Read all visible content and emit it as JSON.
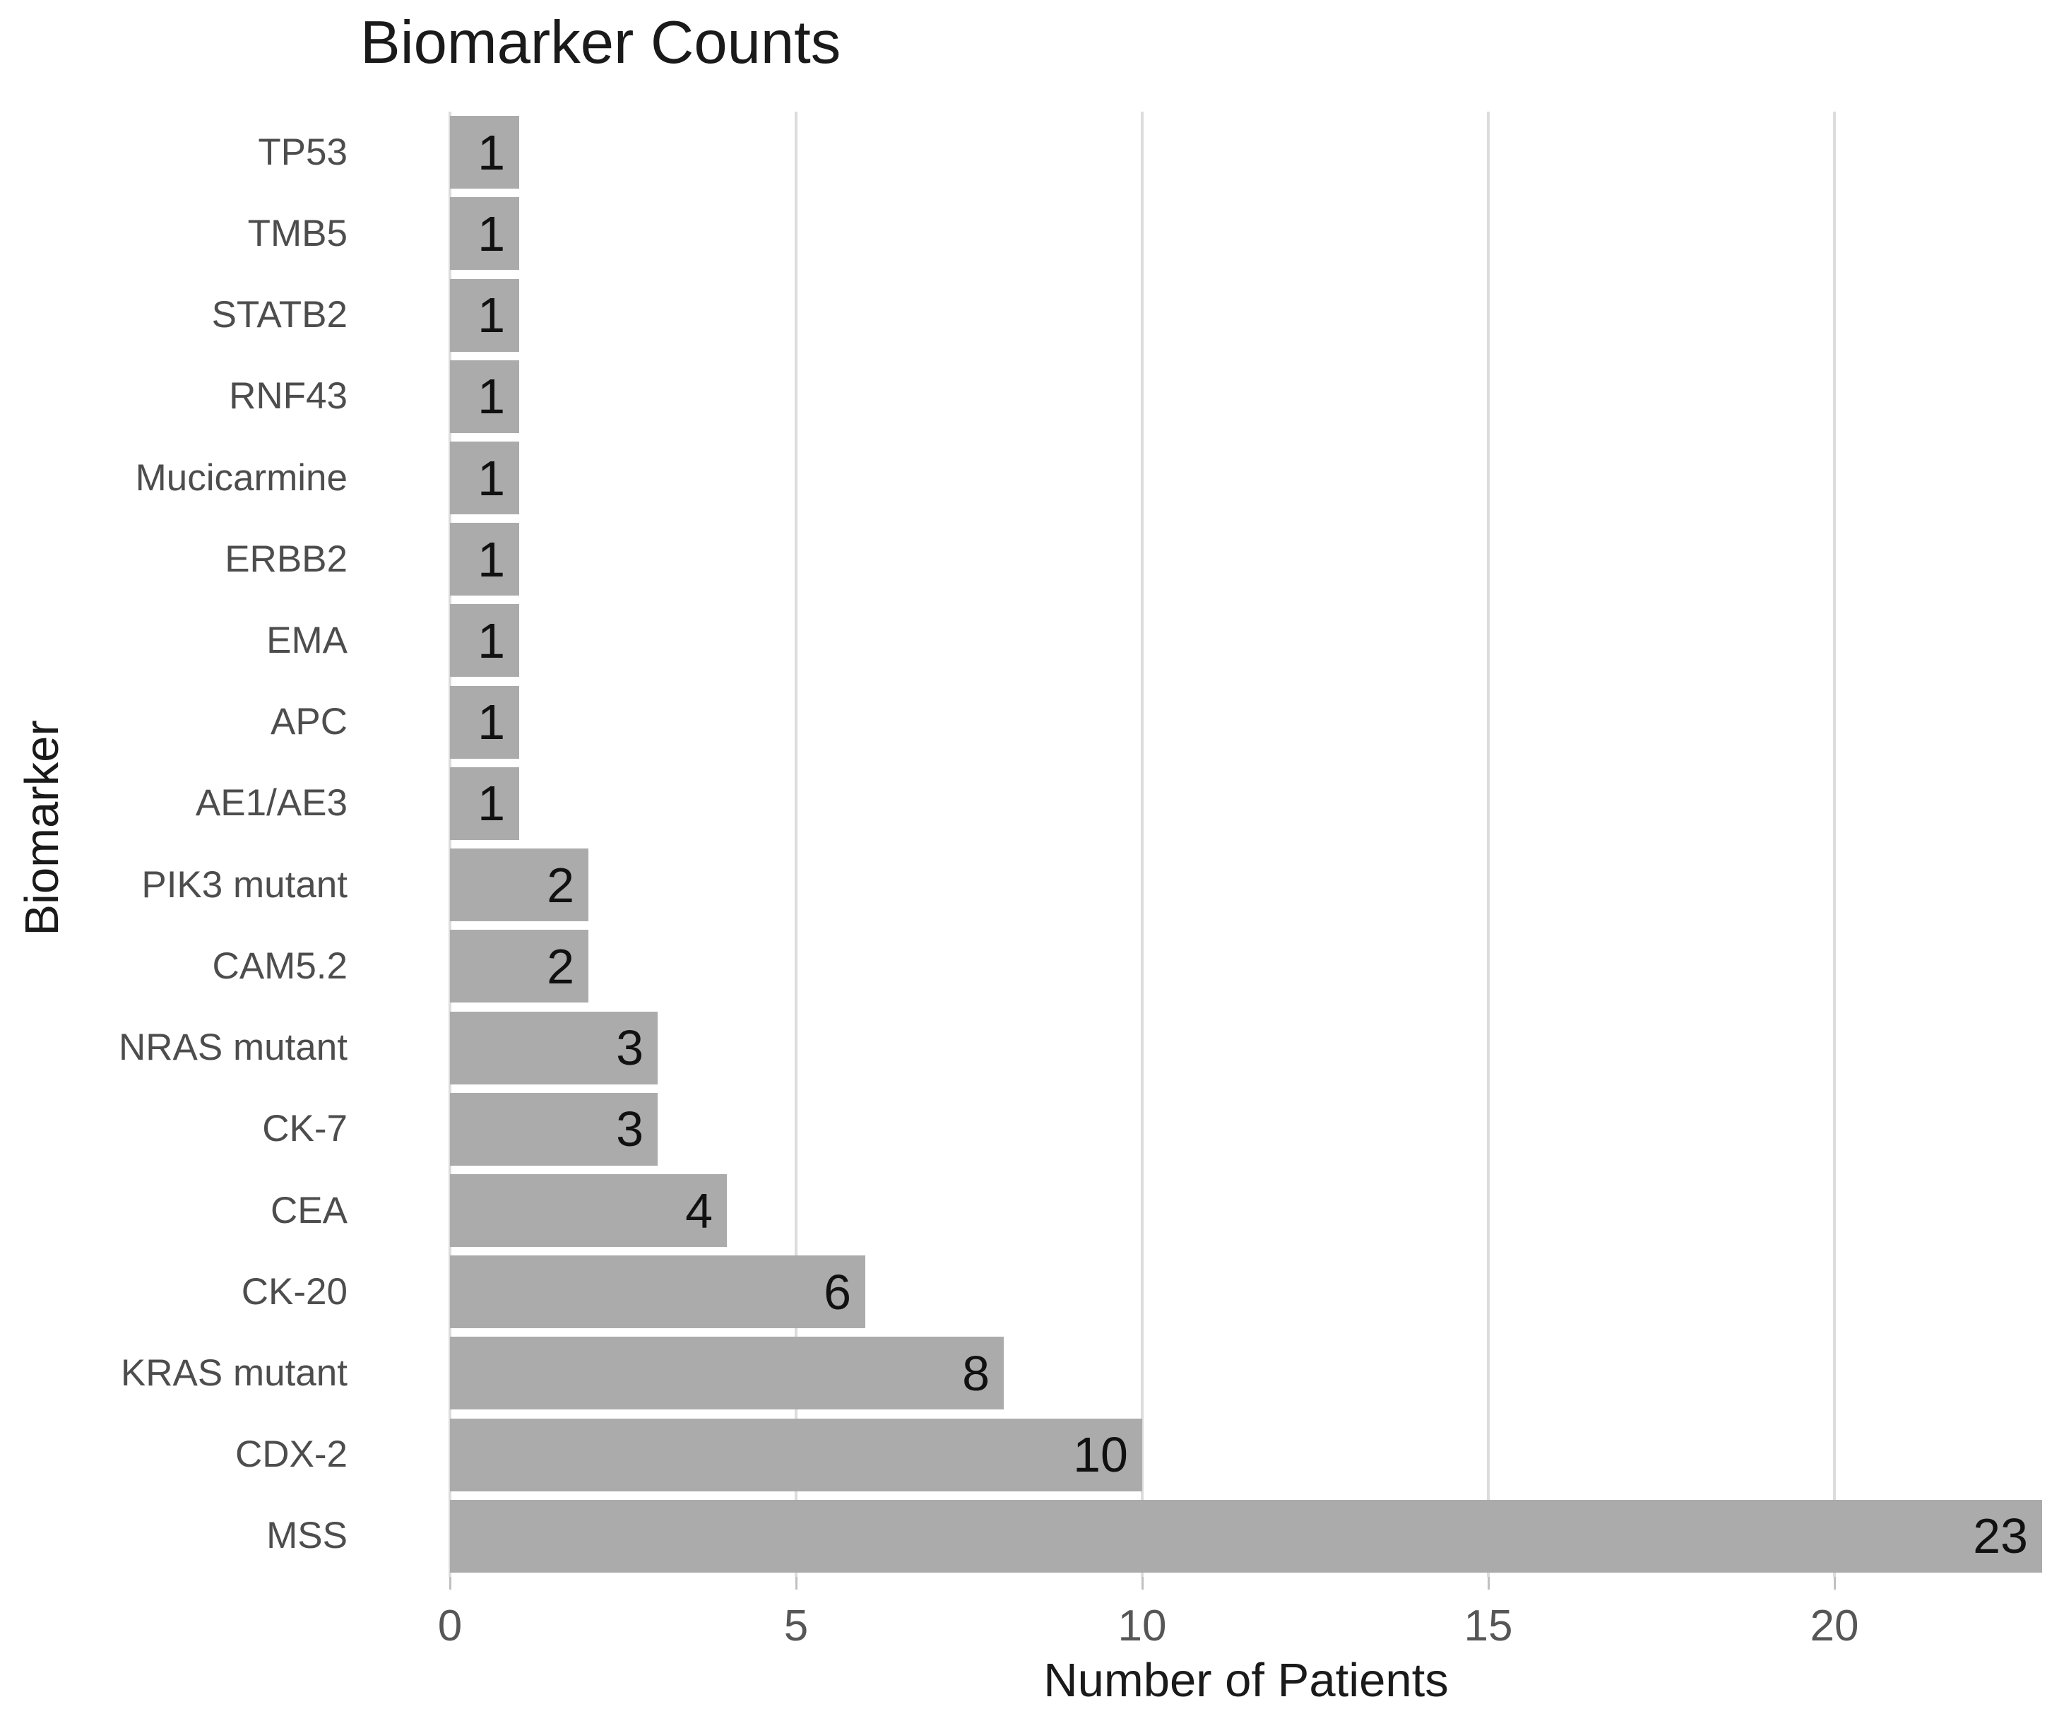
{
  "chart_data": {
    "type": "bar",
    "orientation": "horizontal",
    "title": "Biomarker Counts",
    "xlabel": "Number of Patients",
    "ylabel": "Biomarker",
    "categories": [
      "TP53",
      "TMB5",
      "STATB2",
      "RNF43",
      "Mucicarmine",
      "ERBB2",
      "EMA",
      "APC",
      "AE1/AE3",
      "PIK3 mutant",
      "CAM5.2",
      "NRAS mutant",
      "CK-7",
      "CEA",
      "CK-20",
      "KRAS mutant",
      "CDX-2",
      "MSS"
    ],
    "values": [
      1,
      1,
      1,
      1,
      1,
      1,
      1,
      1,
      1,
      2,
      2,
      3,
      3,
      4,
      6,
      8,
      10,
      23
    ],
    "xticks": [
      0,
      5,
      10,
      15,
      20
    ],
    "xlim": [
      0,
      23.14
    ],
    "grid": true,
    "legend": false,
    "bar_color": "#ababab",
    "gridline_color": "#dcdcdc",
    "background_color": "#ffffff",
    "value_label_color": "#111111",
    "category_label_color": "#4d4d4d",
    "tick_label_color": "#565656"
  }
}
